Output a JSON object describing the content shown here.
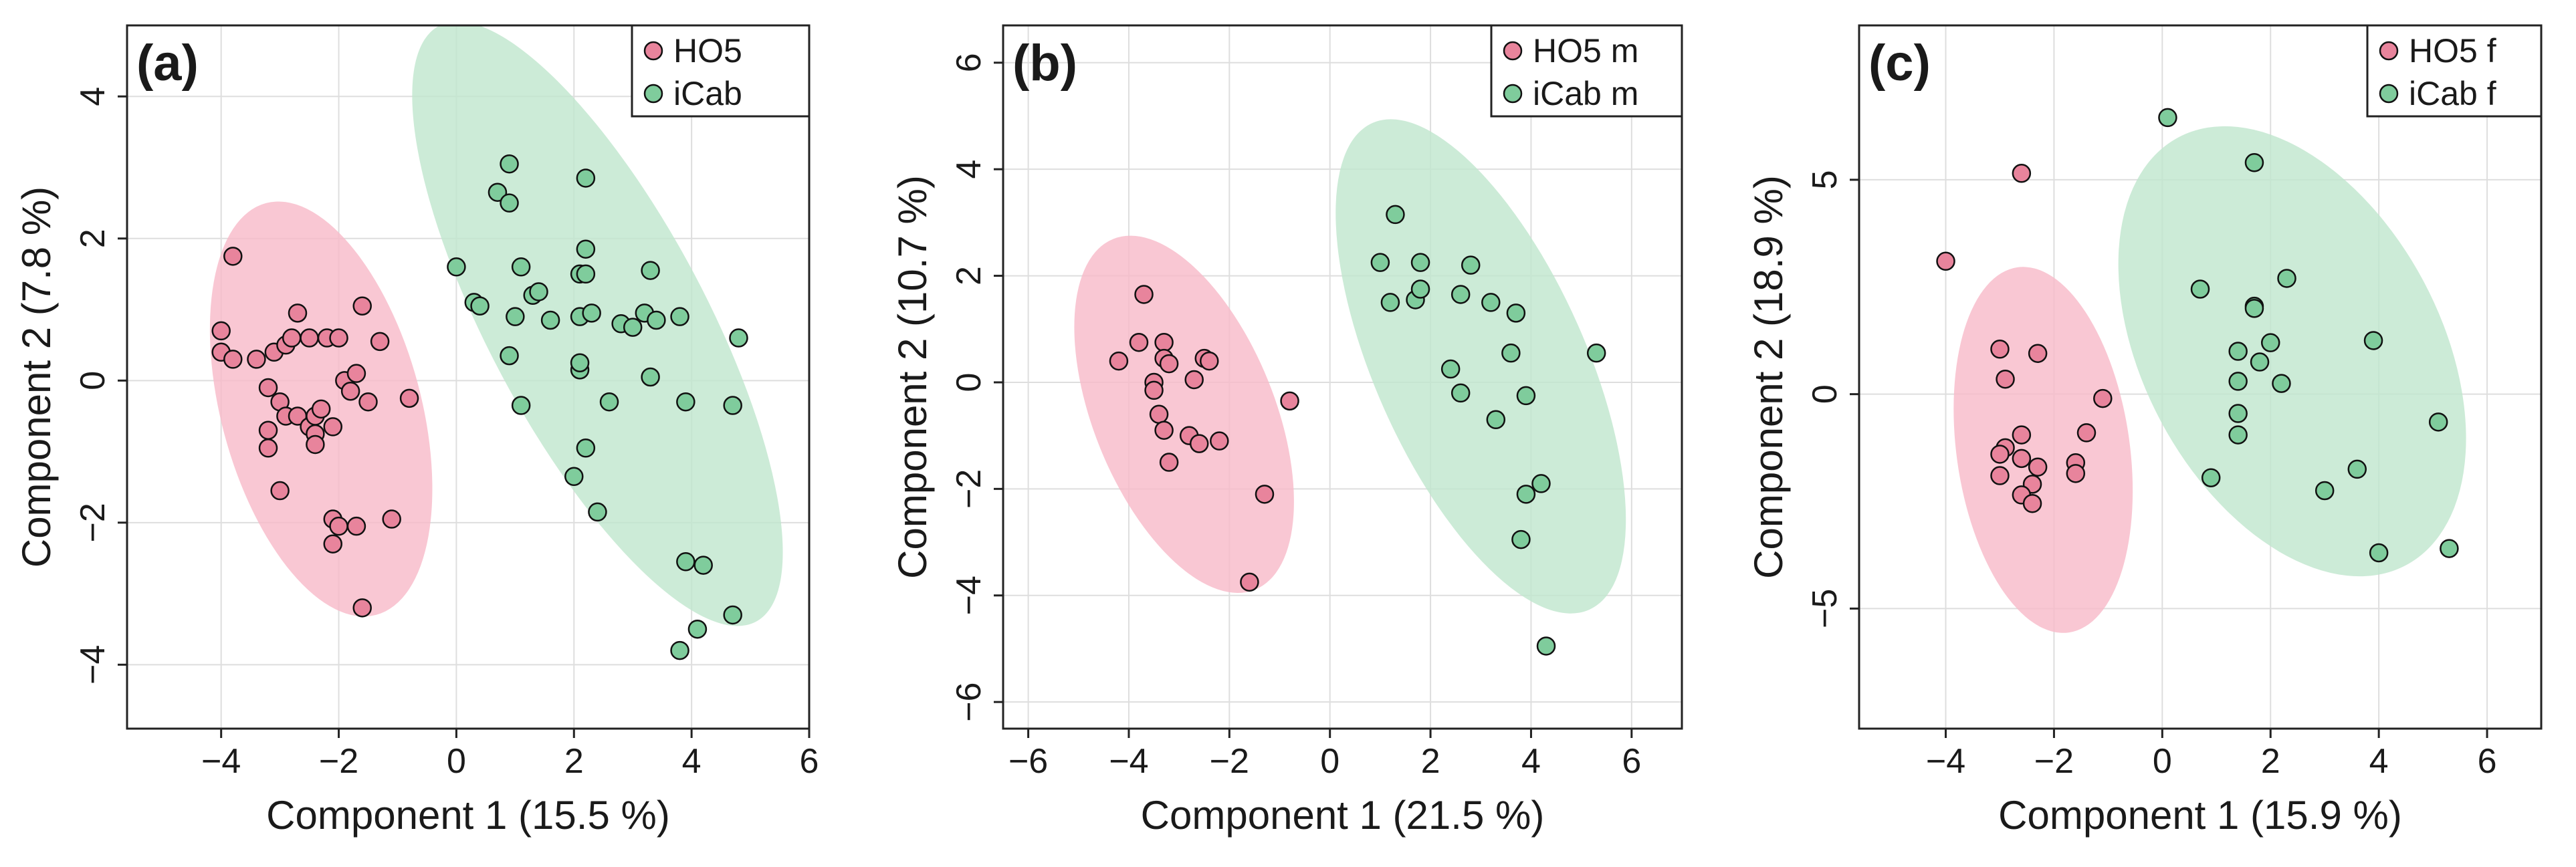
{
  "colors": {
    "ho5_point": "#e8849c",
    "icab_point": "#7fcc9c",
    "ho5_ellipse": "#f8b9c8",
    "icab_ellipse": "#bfe6cd",
    "grid": "#dedede",
    "axis": "#222222"
  },
  "chart_data": [
    {
      "type": "scatter",
      "panel_label": "(a)",
      "xlabel": "Component 1 (15.5 %)",
      "ylabel": "Component 2 (7.8 %)",
      "xlim": [
        -5.6,
        6.0
      ],
      "ylim": [
        -4.9,
        5.0
      ],
      "xticks": [
        -4,
        -2,
        0,
        2,
        4,
        6
      ],
      "yticks": [
        -4,
        -2,
        0,
        2,
        4
      ],
      "tick_labels_x": [
        "−4",
        "−2",
        "0",
        "2",
        "4",
        "6"
      ],
      "tick_labels_y": [
        "−4",
        "−2",
        "0",
        "2",
        "4"
      ],
      "grid": true,
      "legend_position": "top-right",
      "series": [
        {
          "name": "HO5",
          "color_key": "ho5_point",
          "ellipse": {
            "cx": -2.3,
            "cy": -0.4,
            "rx": 1.7,
            "ry": 3.0,
            "angle_deg": 15
          },
          "points": [
            [
              -3.8,
              1.75
            ],
            [
              -4.0,
              0.7
            ],
            [
              -4.0,
              0.4
            ],
            [
              -3.8,
              0.3
            ],
            [
              -3.4,
              0.3
            ],
            [
              -3.1,
              0.4
            ],
            [
              -2.9,
              0.5
            ],
            [
              -2.8,
              0.6
            ],
            [
              -2.7,
              0.95
            ],
            [
              -2.5,
              0.6
            ],
            [
              -2.2,
              0.6
            ],
            [
              -2.0,
              0.6
            ],
            [
              -1.6,
              1.05
            ],
            [
              -1.3,
              0.55
            ],
            [
              -3.2,
              -0.1
            ],
            [
              -3.0,
              -0.3
            ],
            [
              -2.9,
              -0.5
            ],
            [
              -2.7,
              -0.5
            ],
            [
              -2.5,
              -0.65
            ],
            [
              -2.4,
              -0.5
            ],
            [
              -2.3,
              -0.4
            ],
            [
              -2.1,
              -0.65
            ],
            [
              -1.9,
              0.0
            ],
            [
              -1.8,
              -0.15
            ],
            [
              -1.7,
              0.1
            ],
            [
              -1.5,
              -0.3
            ],
            [
              -0.8,
              -0.25
            ],
            [
              -2.4,
              -0.75
            ],
            [
              -2.4,
              -0.9
            ],
            [
              -3.2,
              -0.7
            ],
            [
              -3.2,
              -0.95
            ],
            [
              -3.0,
              -1.55
            ],
            [
              -2.1,
              -1.95
            ],
            [
              -2.0,
              -2.05
            ],
            [
              -1.7,
              -2.05
            ],
            [
              -1.1,
              -1.95
            ],
            [
              -2.1,
              -2.3
            ],
            [
              -1.6,
              -3.2
            ]
          ]
        },
        {
          "name": "iCab",
          "color_key": "icab_point",
          "ellipse": {
            "cx": 2.4,
            "cy": 0.8,
            "rx": 1.85,
            "ry": 4.75,
            "angle_deg": 28
          },
          "points": [
            [
              0.9,
              3.05
            ],
            [
              0.7,
              2.65
            ],
            [
              0.9,
              2.5
            ],
            [
              2.2,
              2.85
            ],
            [
              0.0,
              1.6
            ],
            [
              0.3,
              1.1
            ],
            [
              0.4,
              1.05
            ],
            [
              1.1,
              1.6
            ],
            [
              1.3,
              1.2
            ],
            [
              1.4,
              1.25
            ],
            [
              2.2,
              1.85
            ],
            [
              2.1,
              1.5
            ],
            [
              2.2,
              1.5
            ],
            [
              1.6,
              0.85
            ],
            [
              1.0,
              0.9
            ],
            [
              2.1,
              0.9
            ],
            [
              2.3,
              0.95
            ],
            [
              2.8,
              0.8
            ],
            [
              3.0,
              0.75
            ],
            [
              3.2,
              0.95
            ],
            [
              3.3,
              1.55
            ],
            [
              3.4,
              0.85
            ],
            [
              3.8,
              0.9
            ],
            [
              4.8,
              0.6
            ],
            [
              0.9,
              0.35
            ],
            [
              2.1,
              0.15
            ],
            [
              2.1,
              0.25
            ],
            [
              3.3,
              0.05
            ],
            [
              1.1,
              -0.35
            ],
            [
              2.6,
              -0.3
            ],
            [
              3.9,
              -0.3
            ],
            [
              4.7,
              -0.35
            ],
            [
              2.2,
              -0.95
            ],
            [
              2.0,
              -1.35
            ],
            [
              2.4,
              -1.85
            ],
            [
              3.9,
              -2.55
            ],
            [
              4.2,
              -2.6
            ],
            [
              4.7,
              -3.3
            ],
            [
              4.1,
              -3.5
            ],
            [
              3.8,
              -3.8
            ]
          ]
        }
      ]
    },
    {
      "type": "scatter",
      "panel_label": "(b)",
      "xlabel": "Component 1 (21.5 %)",
      "ylabel": "Component 2 (10.7 %)",
      "xlim": [
        -6.5,
        7.0
      ],
      "ylim": [
        -6.5,
        6.7
      ],
      "xticks": [
        -6,
        -4,
        -2,
        0,
        2,
        4,
        6
      ],
      "yticks": [
        -6,
        -4,
        -2,
        0,
        2,
        4,
        6
      ],
      "tick_labels_x": [
        "−6",
        "−4",
        "−2",
        "0",
        "2",
        "4",
        "6"
      ],
      "tick_labels_y": [
        "−6",
        "−4",
        "−2",
        "0",
        "2",
        "4",
        "6"
      ],
      "grid": true,
      "legend_position": "top-right",
      "series": [
        {
          "name": "HO5 m",
          "color_key": "ho5_point",
          "ellipse": {
            "cx": -2.9,
            "cy": -0.6,
            "rx": 1.8,
            "ry": 3.55,
            "angle_deg": 22
          },
          "points": [
            [
              -3.7,
              1.65
            ],
            [
              -3.8,
              0.75
            ],
            [
              -4.2,
              0.4
            ],
            [
              -3.3,
              0.75
            ],
            [
              -3.3,
              0.45
            ],
            [
              -3.2,
              0.35
            ],
            [
              -2.5,
              0.45
            ],
            [
              -2.4,
              0.4
            ],
            [
              -3.5,
              0.0
            ],
            [
              -3.5,
              -0.15
            ],
            [
              -2.7,
              0.05
            ],
            [
              -3.4,
              -0.6
            ],
            [
              -3.3,
              -0.9
            ],
            [
              -2.8,
              -1.0
            ],
            [
              -2.6,
              -1.15
            ],
            [
              -2.2,
              -1.1
            ],
            [
              -3.2,
              -1.5
            ],
            [
              -0.8,
              -0.35
            ],
            [
              -1.3,
              -2.1
            ],
            [
              -1.6,
              -3.75
            ]
          ]
        },
        {
          "name": "iCab m",
          "color_key": "icab_point",
          "ellipse": {
            "cx": 3.0,
            "cy": 0.3,
            "rx": 2.1,
            "ry": 5.0,
            "angle_deg": 24
          },
          "points": [
            [
              1.3,
              3.15
            ],
            [
              1.0,
              2.25
            ],
            [
              1.8,
              2.25
            ],
            [
              2.8,
              2.2
            ],
            [
              1.2,
              1.5
            ],
            [
              1.7,
              1.55
            ],
            [
              1.8,
              1.75
            ],
            [
              2.6,
              1.65
            ],
            [
              3.2,
              1.5
            ],
            [
              3.7,
              1.3
            ],
            [
              3.6,
              0.55
            ],
            [
              5.3,
              0.55
            ],
            [
              2.4,
              0.25
            ],
            [
              2.6,
              -0.2
            ],
            [
              3.9,
              -0.25
            ],
            [
              3.3,
              -0.7
            ],
            [
              3.9,
              -2.1
            ],
            [
              4.2,
              -1.9
            ],
            [
              3.8,
              -2.95
            ],
            [
              4.3,
              -4.95
            ]
          ]
        }
      ]
    },
    {
      "type": "scatter",
      "panel_label": "(c)",
      "xlabel": "Component 1 (15.9 %)",
      "ylabel": "Component 2 (18.9 %)",
      "xlim": [
        -5.6,
        7.0
      ],
      "ylim": [
        -7.8,
        8.6
      ],
      "xticks": [
        -4,
        -2,
        0,
        2,
        4,
        6
      ],
      "yticks": [
        -5,
        0,
        5
      ],
      "tick_labels_x": [
        "−4",
        "−2",
        "0",
        "2",
        "4",
        "6"
      ],
      "tick_labels_y": [
        "−5",
        "0",
        "5"
      ],
      "grid": true,
      "legend_position": "top-right",
      "series": [
        {
          "name": "HO5 f",
          "color_key": "ho5_point",
          "ellipse": {
            "cx": -2.2,
            "cy": -1.3,
            "rx": 1.6,
            "ry": 4.3,
            "angle_deg": 8
          },
          "points": [
            [
              -2.6,
              5.15
            ],
            [
              -4.0,
              3.1
            ],
            [
              -3.0,
              1.05
            ],
            [
              -2.3,
              0.95
            ],
            [
              -2.9,
              0.35
            ],
            [
              -1.1,
              -0.1
            ],
            [
              -1.4,
              -0.9
            ],
            [
              -2.6,
              -0.95
            ],
            [
              -2.9,
              -1.25
            ],
            [
              -3.0,
              -1.4
            ],
            [
              -2.6,
              -1.5
            ],
            [
              -2.3,
              -1.7
            ],
            [
              -1.6,
              -1.6
            ],
            [
              -1.6,
              -1.85
            ],
            [
              -3.0,
              -1.9
            ],
            [
              -2.4,
              -2.1
            ],
            [
              -2.6,
              -2.35
            ],
            [
              -2.4,
              -2.55
            ]
          ]
        },
        {
          "name": "iCab f",
          "color_key": "icab_point",
          "ellipse": {
            "cx": 2.4,
            "cy": 1.0,
            "rx": 2.75,
            "ry": 5.65,
            "angle_deg": 28
          },
          "points": [
            [
              0.1,
              6.45
            ],
            [
              1.7,
              5.4
            ],
            [
              2.3,
              2.7
            ],
            [
              0.7,
              2.45
            ],
            [
              1.7,
              2.05
            ],
            [
              1.7,
              2.0
            ],
            [
              2.0,
              1.2
            ],
            [
              1.4,
              1.0
            ],
            [
              1.8,
              0.75
            ],
            [
              3.9,
              1.25
            ],
            [
              1.4,
              0.3
            ],
            [
              2.2,
              0.25
            ],
            [
              1.4,
              -0.45
            ],
            [
              1.4,
              -0.95
            ],
            [
              5.1,
              -0.65
            ],
            [
              0.9,
              -1.95
            ],
            [
              3.6,
              -1.75
            ],
            [
              3.0,
              -2.25
            ],
            [
              4.0,
              -3.7
            ],
            [
              5.3,
              -3.6
            ]
          ]
        }
      ]
    }
  ]
}
